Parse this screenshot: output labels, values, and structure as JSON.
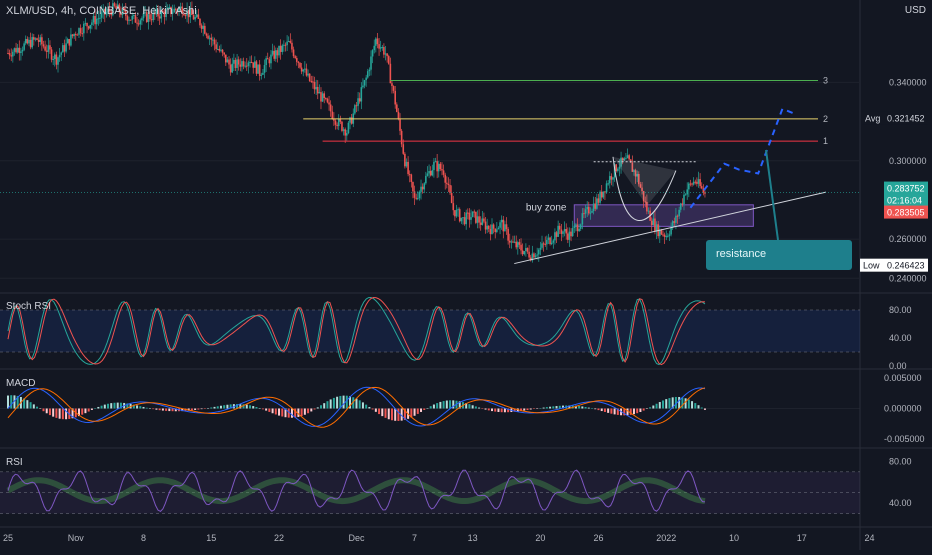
{
  "header": {
    "ticker": "XLM/USD, 4h, COINBASE, Heikin Ashi",
    "currency": "USD"
  },
  "labels": {
    "stoch_rsi": "Stoch RSI",
    "macd": "MACD",
    "rsi": "RSI",
    "buy_zone": "buy zone",
    "resistance": "resistance",
    "level_1": "1",
    "level_2": "2",
    "level_3": "3"
  },
  "price_badges": {
    "avg_label": "Avg",
    "avg_value": "0.321452",
    "last_value": "0.283752",
    "countdown": "02:16:04",
    "prev_value": "0.283505",
    "low_label": "Low",
    "low_value": "0.246423"
  },
  "colors": {
    "background": "#131722",
    "up": "#26a69a",
    "down": "#ef5350",
    "level_1": "#f23645",
    "level_2": "#e8d36b",
    "level_3": "#4caf50",
    "projection": "#2962ff",
    "buy_zone": "#7e57c2",
    "macd_line": "#2962ff",
    "signal_line": "#ff6d00",
    "rsi_line": "#7e57c2"
  },
  "chart_data": {
    "type": "candlestick",
    "main": {
      "y_ticks": [
        "0.340000",
        "0.300000",
        "0.260000",
        "0.240000"
      ],
      "y_tick_values": [
        0.34,
        0.3,
        0.26,
        0.24
      ],
      "ylim": [
        0.234,
        0.378
      ],
      "levels": [
        {
          "name": "1",
          "value": 0.31
        },
        {
          "name": "2",
          "value": 0.3214
        },
        {
          "name": "3",
          "value": 0.341
        }
      ],
      "avg": 0.321452,
      "last": 0.283752,
      "low": 0.246423,
      "ohlc_path": [
        [
          0,
          0.355
        ],
        [
          3,
          0.362
        ],
        [
          5,
          0.352
        ],
        [
          7,
          0.366
        ],
        [
          9,
          0.372
        ],
        [
          11,
          0.378
        ],
        [
          13,
          0.372
        ],
        [
          15,
          0.374
        ],
        [
          18,
          0.378
        ],
        [
          20,
          0.37
        ],
        [
          21,
          0.362
        ],
        [
          22,
          0.355
        ],
        [
          23,
          0.348
        ],
        [
          25,
          0.352
        ],
        [
          26,
          0.345
        ],
        [
          27,
          0.352
        ],
        [
          29,
          0.36
        ],
        [
          31,
          0.342
        ],
        [
          33,
          0.328
        ],
        [
          34,
          0.32
        ],
        [
          35,
          0.315
        ],
        [
          36,
          0.328
        ],
        [
          37,
          0.342
        ],
        [
          38,
          0.362
        ],
        [
          39,
          0.355
        ],
        [
          40,
          0.33
        ],
        [
          41,
          0.3
        ],
        [
          42,
          0.28
        ],
        [
          43,
          0.29
        ],
        [
          44,
          0.298
        ],
        [
          45,
          0.295
        ],
        [
          46,
          0.275
        ],
        [
          47,
          0.27
        ],
        [
          48,
          0.272
        ],
        [
          49,
          0.268
        ],
        [
          50,
          0.265
        ],
        [
          51,
          0.268
        ],
        [
          52,
          0.258
        ],
        [
          53,
          0.255
        ],
        [
          54,
          0.252
        ],
        [
          55,
          0.255
        ],
        [
          56,
          0.26
        ],
        [
          57,
          0.265
        ],
        [
          58,
          0.262
        ],
        [
          59,
          0.268
        ],
        [
          60,
          0.275
        ],
        [
          61,
          0.28
        ],
        [
          62,
          0.29
        ],
        [
          63,
          0.298
        ],
        [
          64,
          0.3
        ],
        [
          65,
          0.292
        ],
        [
          66,
          0.275
        ],
        [
          67,
          0.265
        ],
        [
          68,
          0.262
        ],
        [
          69,
          0.27
        ],
        [
          70,
          0.285
        ],
        [
          71,
          0.29
        ],
        [
          72,
          0.283
        ]
      ],
      "x_ticks": [
        "25",
        "Nov",
        "8",
        "15",
        "22",
        "Dec",
        "7",
        "13",
        "20",
        "26",
        "2022",
        "10",
        "17",
        "24"
      ],
      "x_tick_days": [
        0,
        7,
        14,
        21,
        28,
        36,
        42,
        48,
        55,
        61,
        68,
        75,
        82,
        89
      ]
    },
    "stoch_rsi": {
      "y_ticks": [
        "80.00",
        "40.00",
        "0.00"
      ],
      "y_tick_values": [
        80,
        40,
        0
      ],
      "ylim": [
        0,
        100
      ]
    },
    "macd": {
      "y_ticks": [
        "0.005000",
        "0.000000",
        "-0.005000"
      ],
      "y_tick_values": [
        0.005,
        0,
        -0.005
      ],
      "ylim": [
        -0.006,
        0.006
      ]
    },
    "rsi": {
      "y_ticks": [
        "80.00",
        "40.00"
      ],
      "y_tick_values": [
        80,
        40
      ],
      "ylim": [
        20,
        90
      ]
    }
  }
}
